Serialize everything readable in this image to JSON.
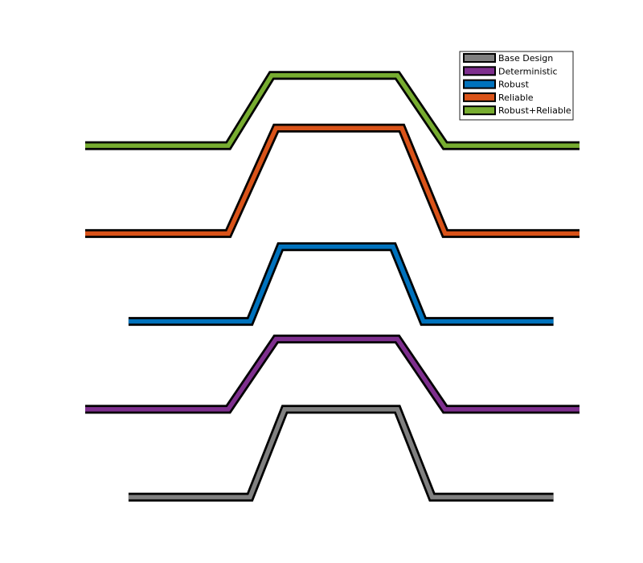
{
  "chart_data": {
    "type": "line",
    "title": "",
    "xlabel": "",
    "ylabel": "",
    "axes_visible": false,
    "grid": false,
    "legend_position": "top-right",
    "xlim": [
      0,
      11.4
    ],
    "ylim": [
      -0.4,
      10.4
    ],
    "series": [
      {
        "name": "Base Design",
        "color": "#808080",
        "offset": 0,
        "x": [
          1.0,
          3.8,
          4.6,
          7.2,
          8.0,
          10.8
        ],
        "y": [
          0.0,
          0.0,
          2.0,
          2.0,
          0.0,
          0.0
        ]
      },
      {
        "name": "Deterministic",
        "color": "#7E2F8E",
        "offset": 2,
        "x": [
          0.0,
          3.3,
          4.4,
          7.2,
          8.3,
          11.4
        ],
        "y": [
          0.0,
          0.0,
          1.6,
          1.6,
          0.0,
          0.0
        ]
      },
      {
        "name": "Robust",
        "color": "#0072BD",
        "offset": 4,
        "x": [
          1.0,
          3.8,
          4.5,
          7.1,
          7.8,
          10.8
        ],
        "y": [
          0.0,
          0.0,
          1.7,
          1.7,
          0.0,
          0.0
        ]
      },
      {
        "name": "Reliable",
        "color": "#D95319",
        "offset": 6,
        "x": [
          0.0,
          3.3,
          4.4,
          7.3,
          8.3,
          11.4
        ],
        "y": [
          0.0,
          0.0,
          2.4,
          2.4,
          0.0,
          0.0
        ]
      },
      {
        "name": "Robust+Reliable",
        "color": "#77AC30",
        "offset": 8,
        "x": [
          0.0,
          3.3,
          4.3,
          7.2,
          8.3,
          11.4
        ],
        "y": [
          0.0,
          0.0,
          1.6,
          1.6,
          0.0,
          0.0
        ]
      }
    ]
  }
}
